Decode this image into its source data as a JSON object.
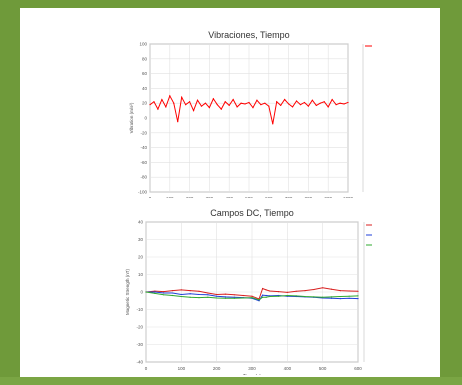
{
  "chart_data": [
    {
      "type": "line",
      "title": "Vibraciones, Tiempo",
      "xlabel": "",
      "ylabel": "Vibration (m/s²)",
      "xlim": [
        0,
        1000
      ],
      "ylim": [
        -100,
        100
      ],
      "xticks": [
        "0",
        "100",
        "200",
        "300",
        "400",
        "500",
        "600",
        "700",
        "800",
        "900",
        "1000"
      ],
      "yticks": [
        "-100",
        "-80",
        "-60",
        "-40",
        "-20",
        "0",
        "20",
        "40",
        "60",
        "80",
        "100"
      ],
      "grid": true,
      "series": [
        {
          "color": "#ff0000",
          "x": [
            0,
            20,
            40,
            60,
            80,
            100,
            120,
            140,
            160,
            180,
            200,
            220,
            240,
            260,
            280,
            300,
            320,
            340,
            360,
            380,
            400,
            420,
            440,
            460,
            480,
            500,
            520,
            540,
            560,
            580,
            600,
            620,
            640,
            660,
            680,
            700,
            720,
            740,
            760,
            780,
            800,
            820,
            840,
            860,
            880,
            900,
            920,
            940,
            960,
            980,
            1000
          ],
          "y": [
            18,
            22,
            12,
            25,
            15,
            30,
            20,
            -5,
            28,
            18,
            22,
            10,
            24,
            16,
            20,
            14,
            26,
            18,
            12,
            22,
            17,
            25,
            15,
            20,
            19,
            21,
            14,
            24,
            18,
            20,
            16,
            -8,
            22,
            17,
            25,
            19,
            15,
            23,
            18,
            21,
            16,
            24,
            17,
            20,
            22,
            15,
            25,
            18,
            20,
            19,
            21
          ]
        }
      ]
    },
    {
      "type": "line",
      "title": "Campos DC, Tiempo",
      "xlabel": "Time (s)",
      "ylabel": "Magnetic Strength (nT)",
      "xlim": [
        0,
        600
      ],
      "ylim": [
        -40,
        40
      ],
      "xticks": [
        "0",
        "100",
        "200",
        "300",
        "400",
        "500",
        "600"
      ],
      "yticks": [
        "-40",
        "-30",
        "-20",
        "-10",
        "0",
        "10",
        "20",
        "30",
        "40"
      ],
      "grid": true,
      "series": [
        {
          "color": "#d81f1f",
          "x": [
            0,
            25,
            50,
            75,
            100,
            125,
            150,
            175,
            200,
            225,
            250,
            275,
            300,
            320,
            330,
            340,
            350,
            375,
            400,
            425,
            450,
            475,
            500,
            525,
            550,
            575,
            600
          ],
          "y": [
            0,
            0.5,
            0.2,
            0.8,
            1.2,
            0.8,
            0.4,
            -0.6,
            -1.4,
            -1.2,
            -1.6,
            -2.0,
            -2.4,
            -4.0,
            2.0,
            1.2,
            0.6,
            0.2,
            -0.2,
            0.4,
            0.8,
            1.4,
            2.4,
            1.6,
            0.8,
            0.6,
            0.4
          ]
        },
        {
          "color": "#1f3fd8",
          "x": [
            0,
            25,
            50,
            75,
            100,
            125,
            150,
            175,
            200,
            225,
            250,
            275,
            300,
            320,
            330,
            340,
            350,
            375,
            400,
            425,
            450,
            475,
            500,
            525,
            550,
            575,
            600
          ],
          "y": [
            0,
            0,
            -0.6,
            -0.6,
            -1.4,
            -1.0,
            -1.4,
            -1.6,
            -2.4,
            -2.8,
            -3.0,
            -3.2,
            -3.6,
            -5.0,
            -1.8,
            -2.0,
            -2.2,
            -2.0,
            -2.4,
            -2.6,
            -2.8,
            -3.0,
            -3.4,
            -3.6,
            -3.8,
            -3.6,
            -3.8
          ]
        },
        {
          "color": "#2fa82f",
          "x": [
            0,
            25,
            50,
            75,
            100,
            125,
            150,
            175,
            200,
            225,
            250,
            275,
            300,
            320,
            330,
            340,
            350,
            375,
            400,
            425,
            450,
            475,
            500,
            525,
            550,
            575,
            600
          ],
          "y": [
            0,
            -0.8,
            -1.6,
            -2.0,
            -2.6,
            -3.0,
            -3.2,
            -3.0,
            -3.4,
            -3.6,
            -3.6,
            -3.4,
            -3.2,
            -4.5,
            -3.0,
            -3.0,
            -2.6,
            -2.4,
            -2.0,
            -2.2,
            -2.6,
            -2.8,
            -3.0,
            -2.8,
            -2.6,
            -2.4,
            -2.2
          ]
        }
      ]
    }
  ]
}
